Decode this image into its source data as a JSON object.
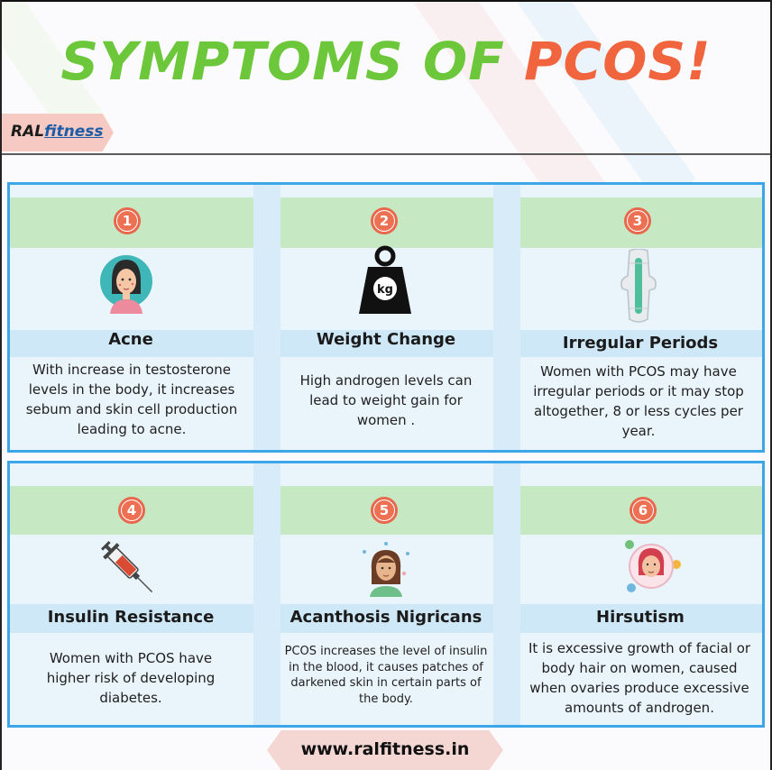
{
  "title": {
    "part1": "SYMPTOMS OF ",
    "part2": "PCOS!"
  },
  "brand": {
    "name_part1": "RAL",
    "name_part2": "fitness"
  },
  "footer": {
    "url": "www.ralfitness.in"
  },
  "colors": {
    "accent_green": "#6dc73a",
    "accent_orange": "#f0643e",
    "panel_border": "#3da6e8"
  },
  "symptoms": [
    {
      "number": "1",
      "title": "Acne",
      "icon": "woman-acne-icon",
      "description": "With increase in testosterone levels in the body, it increases sebum and skin cell production leading to acne."
    },
    {
      "number": "2",
      "title": "Weight Change",
      "icon": "kg-weight-icon",
      "icon_label": "kg",
      "description": "High androgen levels can lead to weight gain for women ."
    },
    {
      "number": "3",
      "title": "Irregular Periods",
      "icon": "sanitary-pad-icon",
      "description": "Women with PCOS may have irregular periods or it may stop altogether, 8 or less cycles per year."
    },
    {
      "number": "4",
      "title": "Insulin Resistance",
      "icon": "syringe-icon",
      "description": "Women with PCOS have higher risk of developing diabetes."
    },
    {
      "number": "5",
      "title": "Acanthosis Nigricans",
      "icon": "woman-skin-icon",
      "description": "PCOS increases the level of insulin in the blood, it causes patches of darkened skin in certain parts of the body."
    },
    {
      "number": "6",
      "title": "Hirsutism",
      "icon": "woman-hair-icon",
      "description": "It is excessive growth of facial or body hair on women, caused when ovaries produce excessive amounts of androgen."
    }
  ]
}
